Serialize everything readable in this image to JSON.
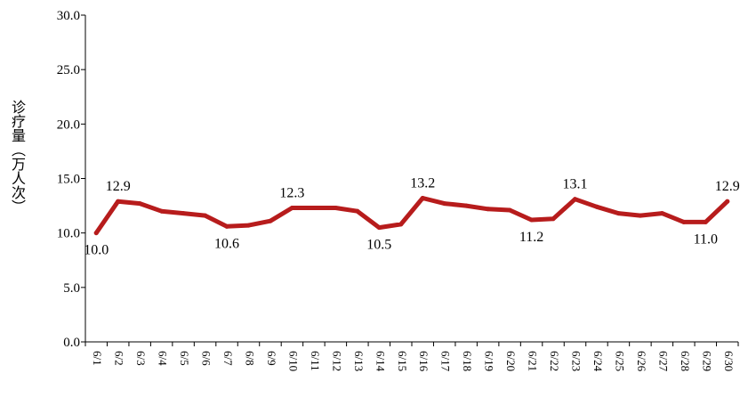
{
  "chart_data": {
    "type": "line",
    "title": "",
    "xlabel": "",
    "ylabel": "诊疗量（万人次）",
    "ylim": [
      0,
      30
    ],
    "yticks": [
      "0.0",
      "5.0",
      "10.0",
      "15.0",
      "20.0",
      "25.0",
      "30.0"
    ],
    "categories": [
      "6/1",
      "6/2",
      "6/3",
      "6/4",
      "6/5",
      "6/6",
      "6/7",
      "6/8",
      "6/9",
      "6/10",
      "6/11",
      "6/12",
      "6/13",
      "6/14",
      "6/15",
      "6/16",
      "6/17",
      "6/18",
      "6/19",
      "6/20",
      "6/21",
      "6/22",
      "6/23",
      "6/24",
      "6/25",
      "6/26",
      "6/27",
      "6/28",
      "6/29",
      "6/30"
    ],
    "series": [
      {
        "values": [
          10.0,
          12.9,
          12.7,
          12.0,
          11.8,
          11.6,
          10.6,
          10.7,
          11.1,
          12.3,
          12.3,
          12.3,
          12.0,
          10.5,
          10.8,
          13.2,
          12.7,
          12.5,
          12.2,
          12.1,
          11.2,
          11.3,
          13.1,
          12.4,
          11.8,
          11.6,
          11.8,
          11.0,
          11.0,
          12.9
        ],
        "color": "#b71c1c"
      }
    ],
    "data_labels": [
      {
        "index": 0,
        "text": "10.0",
        "pos": "below"
      },
      {
        "index": 1,
        "text": "12.9",
        "pos": "above"
      },
      {
        "index": 6,
        "text": "10.6",
        "pos": "below"
      },
      {
        "index": 9,
        "text": "12.3",
        "pos": "above"
      },
      {
        "index": 13,
        "text": "10.5",
        "pos": "below"
      },
      {
        "index": 15,
        "text": "13.2",
        "pos": "above"
      },
      {
        "index": 20,
        "text": "11.2",
        "pos": "below"
      },
      {
        "index": 22,
        "text": "13.1",
        "pos": "above"
      },
      {
        "index": 28,
        "text": "11.0",
        "pos": "below"
      },
      {
        "index": 29,
        "text": "12.9",
        "pos": "above"
      }
    ],
    "grid": false,
    "legend": "none"
  }
}
